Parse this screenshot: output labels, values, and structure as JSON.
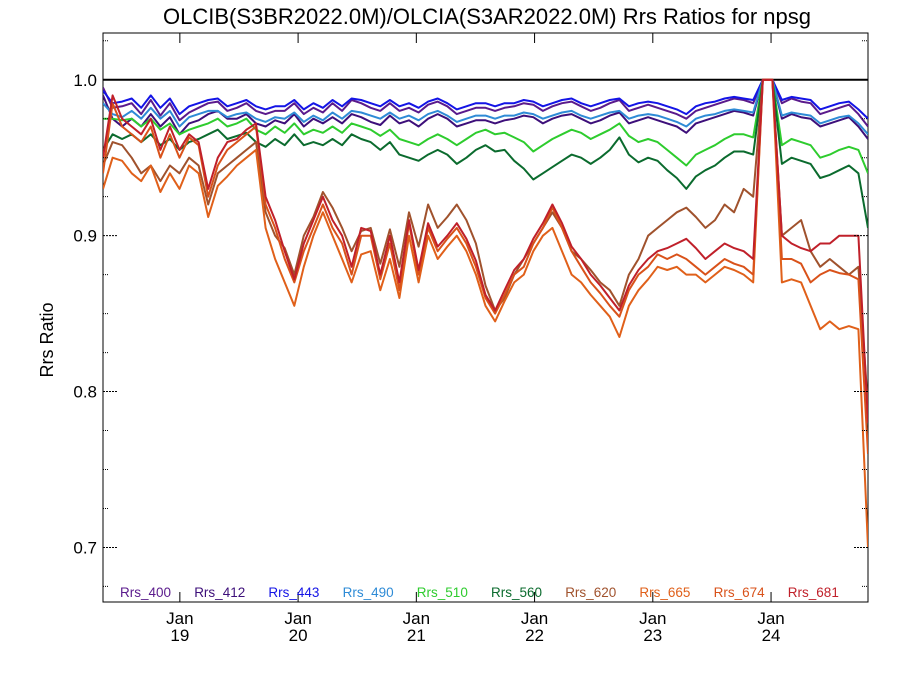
{
  "chart_data": {
    "type": "line",
    "title": "OLCIB(S3BR2022.0M)/OLCIA(S3AR2022.0M)  Rrs Ratios for npsg",
    "ylabel": "Rrs Ratio",
    "xlabel": "",
    "ylim": [
      0.665,
      1.03
    ],
    "xlim": [
      18.35,
      24.82
    ],
    "yticks": [
      0.7,
      0.8,
      0.9,
      1.0
    ],
    "ytick_labels": [
      "0.7",
      "0.8",
      "0.9",
      "1.0"
    ],
    "xticks": [
      19,
      20,
      21,
      22,
      23,
      24
    ],
    "xtick_labels_month": [
      "Jan",
      "Jan",
      "Jan",
      "Jan",
      "Jan",
      "Jan"
    ],
    "xtick_labels_day": [
      "19",
      "20",
      "21",
      "22",
      "23",
      "24"
    ],
    "reference_line": 1.0,
    "grid": false,
    "legend_position": "bottom",
    "series": [
      {
        "name": "Rrs_400",
        "color": "#5a1a8c",
        "values": [
          0.995,
          0.982,
          0.983,
          0.985,
          0.978,
          0.987,
          0.977,
          0.985,
          0.974,
          0.979,
          0.982,
          0.985,
          0.986,
          0.98,
          0.982,
          0.985,
          0.98,
          0.978,
          0.98,
          0.98,
          0.985,
          0.978,
          0.982,
          0.979,
          0.985,
          0.98,
          0.987,
          0.985,
          0.982,
          0.98,
          0.985,
          0.98,
          0.982,
          0.979,
          0.984,
          0.986,
          0.983,
          0.978,
          0.98,
          0.982,
          0.982,
          0.98,
          0.982,
          0.983,
          0.985,
          0.984,
          0.98,
          0.983,
          0.985,
          0.986,
          0.983,
          0.98,
          0.982,
          0.985,
          0.987,
          0.98,
          0.982,
          0.984,
          0.982,
          0.98,
          0.978,
          0.975,
          0.98,
          0.982,
          0.984,
          0.986,
          0.988,
          0.987,
          0.985,
          1.0,
          1.0,
          0.985,
          0.988,
          0.986,
          0.985,
          0.978,
          0.98,
          0.982,
          0.984,
          0.978,
          0.97
        ]
      },
      {
        "name": "Rrs_412",
        "color": "#3d0f7a",
        "values": [
          0.99,
          0.975,
          0.97,
          0.975,
          0.97,
          0.978,
          0.97,
          0.976,
          0.965,
          0.972,
          0.974,
          0.978,
          0.98,
          0.975,
          0.975,
          0.978,
          0.972,
          0.97,
          0.974,
          0.972,
          0.978,
          0.97,
          0.975,
          0.972,
          0.976,
          0.972,
          0.978,
          0.976,
          0.973,
          0.971,
          0.977,
          0.972,
          0.974,
          0.97,
          0.975,
          0.978,
          0.975,
          0.97,
          0.972,
          0.974,
          0.974,
          0.972,
          0.974,
          0.975,
          0.977,
          0.976,
          0.972,
          0.975,
          0.977,
          0.978,
          0.975,
          0.972,
          0.974,
          0.977,
          0.979,
          0.972,
          0.974,
          0.976,
          0.974,
          0.972,
          0.97,
          0.966,
          0.972,
          0.974,
          0.976,
          0.978,
          0.98,
          0.979,
          0.977,
          1.0,
          1.0,
          0.975,
          0.978,
          0.976,
          0.975,
          0.97,
          0.972,
          0.974,
          0.976,
          0.97,
          0.962
        ]
      },
      {
        "name": "Rrs_443",
        "color": "#1414e6",
        "values": [
          0.993,
          0.985,
          0.986,
          0.988,
          0.982,
          0.99,
          0.982,
          0.988,
          0.978,
          0.983,
          0.985,
          0.987,
          0.988,
          0.983,
          0.985,
          0.987,
          0.983,
          0.981,
          0.983,
          0.983,
          0.987,
          0.981,
          0.985,
          0.982,
          0.987,
          0.983,
          0.988,
          0.987,
          0.985,
          0.983,
          0.987,
          0.983,
          0.985,
          0.982,
          0.986,
          0.988,
          0.985,
          0.981,
          0.983,
          0.985,
          0.985,
          0.983,
          0.985,
          0.985,
          0.987,
          0.986,
          0.983,
          0.985,
          0.987,
          0.988,
          0.985,
          0.983,
          0.985,
          0.987,
          0.988,
          0.983,
          0.985,
          0.986,
          0.985,
          0.983,
          0.981,
          0.978,
          0.983,
          0.985,
          0.986,
          0.988,
          0.989,
          0.988,
          0.987,
          1.0,
          1.0,
          0.987,
          0.989,
          0.988,
          0.987,
          0.981,
          0.983,
          0.985,
          0.986,
          0.981,
          0.975
        ]
      },
      {
        "name": "Rrs_490",
        "color": "#2e8bd6",
        "values": [
          0.985,
          0.978,
          0.976,
          0.98,
          0.975,
          0.982,
          0.975,
          0.98,
          0.97,
          0.976,
          0.978,
          0.98,
          0.98,
          0.976,
          0.978,
          0.979,
          0.975,
          0.973,
          0.976,
          0.975,
          0.979,
          0.973,
          0.977,
          0.974,
          0.979,
          0.975,
          0.98,
          0.979,
          0.977,
          0.975,
          0.979,
          0.975,
          0.977,
          0.974,
          0.978,
          0.98,
          0.977,
          0.973,
          0.975,
          0.977,
          0.977,
          0.975,
          0.977,
          0.977,
          0.979,
          0.978,
          0.975,
          0.977,
          0.979,
          0.98,
          0.977,
          0.975,
          0.977,
          0.979,
          0.98,
          0.975,
          0.977,
          0.978,
          0.977,
          0.975,
          0.973,
          0.97,
          0.975,
          0.977,
          0.978,
          0.98,
          0.981,
          0.98,
          0.979,
          1.0,
          1.0,
          0.977,
          0.979,
          0.978,
          0.977,
          0.972,
          0.974,
          0.976,
          0.977,
          0.972,
          0.965
        ]
      },
      {
        "name": "Rrs_510",
        "color": "#2ecc2e",
        "values": [
          0.975,
          0.975,
          0.974,
          0.975,
          0.97,
          0.975,
          0.968,
          0.972,
          0.965,
          0.968,
          0.97,
          0.972,
          0.975,
          0.97,
          0.972,
          0.975,
          0.968,
          0.965,
          0.97,
          0.966,
          0.972,
          0.965,
          0.968,
          0.966,
          0.97,
          0.966,
          0.972,
          0.97,
          0.968,
          0.964,
          0.968,
          0.962,
          0.96,
          0.958,
          0.962,
          0.965,
          0.962,
          0.958,
          0.962,
          0.966,
          0.968,
          0.965,
          0.966,
          0.963,
          0.96,
          0.954,
          0.958,
          0.962,
          0.965,
          0.968,
          0.966,
          0.962,
          0.965,
          0.968,
          0.972,
          0.964,
          0.96,
          0.962,
          0.96,
          0.955,
          0.95,
          0.945,
          0.952,
          0.955,
          0.958,
          0.962,
          0.965,
          0.965,
          0.963,
          1.0,
          1.0,
          0.958,
          0.962,
          0.96,
          0.958,
          0.95,
          0.952,
          0.955,
          0.957,
          0.955,
          0.94
        ]
      },
      {
        "name": "Rrs_560",
        "color": "#0b6b2e",
        "values": [
          0.955,
          0.965,
          0.962,
          0.965,
          0.96,
          0.965,
          0.958,
          0.962,
          0.955,
          0.96,
          0.962,
          0.965,
          0.968,
          0.962,
          0.964,
          0.966,
          0.96,
          0.957,
          0.962,
          0.958,
          0.965,
          0.958,
          0.96,
          0.958,
          0.962,
          0.958,
          0.965,
          0.962,
          0.96,
          0.955,
          0.96,
          0.952,
          0.95,
          0.948,
          0.952,
          0.955,
          0.952,
          0.946,
          0.95,
          0.955,
          0.958,
          0.954,
          0.955,
          0.948,
          0.943,
          0.936,
          0.94,
          0.944,
          0.948,
          0.952,
          0.95,
          0.946,
          0.95,
          0.955,
          0.963,
          0.952,
          0.947,
          0.95,
          0.948,
          0.942,
          0.937,
          0.93,
          0.938,
          0.942,
          0.945,
          0.95,
          0.954,
          0.954,
          0.952,
          1.0,
          1.0,
          0.946,
          0.95,
          0.948,
          0.946,
          0.937,
          0.939,
          0.942,
          0.945,
          0.94,
          0.905
        ]
      },
      {
        "name": "Rrs_620",
        "color": "#a0522d",
        "values": [
          0.945,
          0.96,
          0.958,
          0.95,
          0.94,
          0.945,
          0.935,
          0.945,
          0.94,
          0.95,
          0.945,
          0.92,
          0.94,
          0.945,
          0.95,
          0.955,
          0.96,
          0.915,
          0.9,
          0.892,
          0.875,
          0.9,
          0.912,
          0.928,
          0.918,
          0.905,
          0.89,
          0.903,
          0.905,
          0.882,
          0.904,
          0.88,
          0.915,
          0.893,
          0.92,
          0.905,
          0.912,
          0.92,
          0.91,
          0.895,
          0.868,
          0.852,
          0.86,
          0.875,
          0.885,
          0.895,
          0.905,
          0.915,
          0.905,
          0.89,
          0.885,
          0.878,
          0.87,
          0.865,
          0.855,
          0.875,
          0.885,
          0.9,
          0.905,
          0.91,
          0.915,
          0.918,
          0.912,
          0.905,
          0.91,
          0.92,
          0.915,
          0.93,
          0.925,
          1.0,
          1.0,
          0.9,
          0.905,
          0.91,
          0.89,
          0.88,
          0.885,
          0.88,
          0.875,
          0.88,
          0.79
        ]
      },
      {
        "name": "Rrs_665",
        "color": "#e0601a",
        "values": [
          0.93,
          0.95,
          0.948,
          0.94,
          0.935,
          0.945,
          0.928,
          0.94,
          0.93,
          0.945,
          0.94,
          0.912,
          0.932,
          0.938,
          0.945,
          0.95,
          0.955,
          0.905,
          0.885,
          0.87,
          0.855,
          0.88,
          0.9,
          0.915,
          0.9,
          0.885,
          0.87,
          0.888,
          0.89,
          0.865,
          0.885,
          0.86,
          0.9,
          0.87,
          0.9,
          0.885,
          0.893,
          0.9,
          0.89,
          0.875,
          0.855,
          0.845,
          0.858,
          0.87,
          0.875,
          0.89,
          0.9,
          0.905,
          0.89,
          0.875,
          0.87,
          0.862,
          0.855,
          0.848,
          0.835,
          0.855,
          0.865,
          0.872,
          0.88,
          0.878,
          0.88,
          0.875,
          0.875,
          0.87,
          0.875,
          0.88,
          0.878,
          0.875,
          0.87,
          1.0,
          1.0,
          0.87,
          0.872,
          0.87,
          0.855,
          0.84,
          0.845,
          0.84,
          0.842,
          0.84,
          0.7
        ]
      },
      {
        "name": "Rrs_674",
        "color": "#d9521a",
        "values": [
          0.94,
          0.985,
          0.97,
          0.965,
          0.96,
          0.97,
          0.95,
          0.965,
          0.95,
          0.963,
          0.958,
          0.925,
          0.945,
          0.955,
          0.96,
          0.965,
          0.97,
          0.92,
          0.905,
          0.885,
          0.87,
          0.89,
          0.905,
          0.92,
          0.905,
          0.895,
          0.875,
          0.9,
          0.9,
          0.872,
          0.895,
          0.865,
          0.908,
          0.875,
          0.905,
          0.89,
          0.898,
          0.905,
          0.895,
          0.88,
          0.86,
          0.85,
          0.862,
          0.875,
          0.88,
          0.895,
          0.905,
          0.918,
          0.905,
          0.89,
          0.88,
          0.87,
          0.863,
          0.855,
          0.848,
          0.865,
          0.875,
          0.88,
          0.888,
          0.885,
          0.888,
          0.885,
          0.88,
          0.875,
          0.88,
          0.885,
          0.882,
          0.88,
          0.875,
          1.0,
          1.0,
          0.885,
          0.885,
          0.882,
          0.87,
          0.875,
          0.878,
          0.876,
          0.875,
          0.872,
          0.76
        ]
      },
      {
        "name": "Rrs_681",
        "color": "#c0202a",
        "values": [
          0.95,
          0.99,
          0.975,
          0.97,
          0.965,
          0.975,
          0.955,
          0.97,
          0.955,
          0.965,
          0.96,
          0.93,
          0.95,
          0.96,
          0.962,
          0.968,
          0.972,
          0.925,
          0.91,
          0.89,
          0.872,
          0.895,
          0.91,
          0.925,
          0.91,
          0.9,
          0.88,
          0.905,
          0.903,
          0.875,
          0.9,
          0.87,
          0.91,
          0.878,
          0.908,
          0.893,
          0.9,
          0.908,
          0.898,
          0.884,
          0.862,
          0.852,
          0.865,
          0.878,
          0.885,
          0.898,
          0.908,
          0.92,
          0.908,
          0.893,
          0.885,
          0.875,
          0.868,
          0.86,
          0.852,
          0.868,
          0.878,
          0.885,
          0.89,
          0.892,
          0.895,
          0.898,
          0.892,
          0.885,
          0.89,
          0.895,
          0.892,
          0.89,
          0.885,
          1.0,
          1.0,
          0.9,
          0.895,
          0.892,
          0.89,
          0.895,
          0.895,
          0.9,
          0.9,
          0.9,
          0.78
        ]
      }
    ]
  }
}
